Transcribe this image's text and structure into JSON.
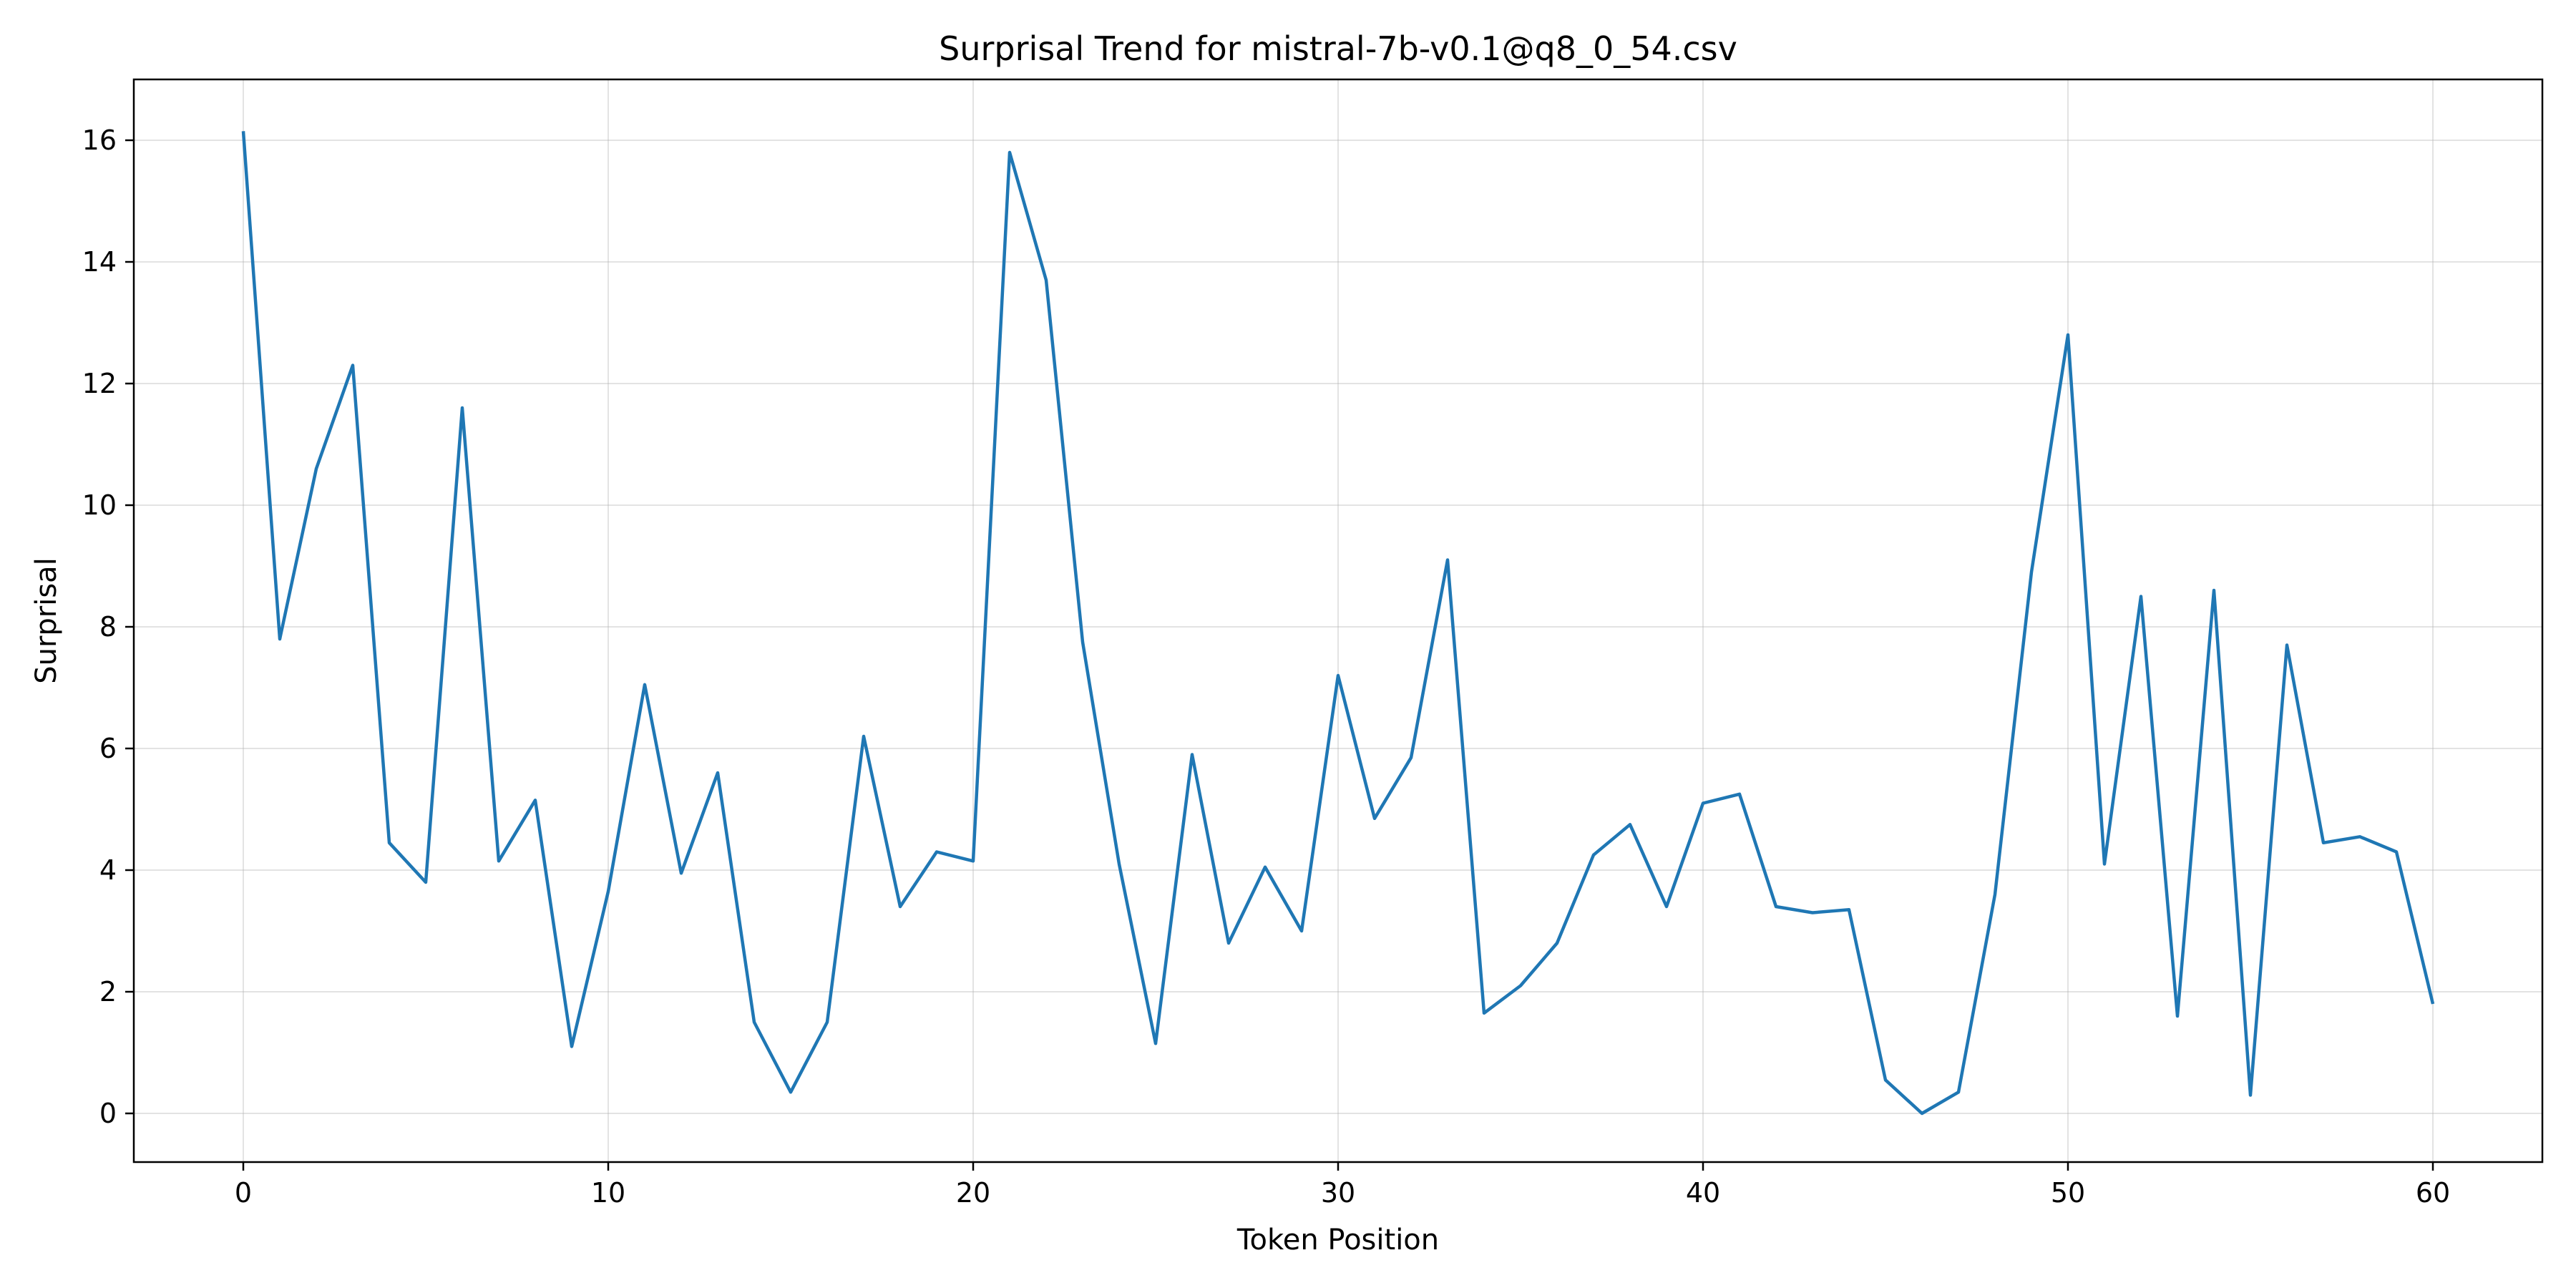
{
  "chart_data": {
    "type": "line",
    "title": "Surprisal Trend for mistral-7b-v0.1@q8_0_54.csv",
    "xlabel": "Token Position",
    "ylabel": "Surprisal",
    "xlim": [
      -3,
      63
    ],
    "ylim": [
      -0.8,
      17
    ],
    "x_ticks": [
      0,
      10,
      20,
      30,
      40,
      50,
      60
    ],
    "y_ticks": [
      0,
      2,
      4,
      6,
      8,
      10,
      12,
      14,
      16
    ],
    "grid": true,
    "series": [
      {
        "color": "#1f77b4",
        "x": [
          0,
          1,
          2,
          3,
          4,
          5,
          6,
          7,
          8,
          9,
          10,
          11,
          12,
          13,
          14,
          15,
          16,
          17,
          18,
          19,
          20,
          21,
          22,
          23,
          24,
          25,
          26,
          27,
          28,
          29,
          30,
          31,
          32,
          33,
          34,
          35,
          36,
          37,
          38,
          39,
          40,
          41,
          42,
          43,
          44,
          45,
          46,
          47,
          48,
          49,
          50,
          51,
          52,
          53,
          54,
          55,
          56,
          57,
          58,
          59,
          60
        ],
        "values": [
          16.15,
          7.8,
          10.6,
          12.3,
          4.45,
          3.8,
          11.6,
          4.15,
          5.15,
          1.1,
          3.65,
          7.05,
          3.95,
          5.6,
          1.5,
          0.35,
          1.5,
          6.2,
          3.4,
          4.3,
          4.15,
          15.8,
          13.7,
          7.75,
          4.1,
          1.15,
          5.9,
          2.8,
          4.05,
          3.0,
          7.2,
          4.85,
          5.85,
          9.1,
          1.65,
          2.1,
          2.8,
          4.25,
          4.75,
          3.4,
          5.1,
          5.25,
          3.4,
          3.3,
          3.35,
          0.55,
          0.0,
          0.35,
          3.6,
          8.9,
          12.8,
          4.1,
          8.5,
          1.6,
          8.6,
          0.3,
          7.7,
          4.45,
          4.55,
          4.3,
          1.8
        ]
      }
    ]
  }
}
